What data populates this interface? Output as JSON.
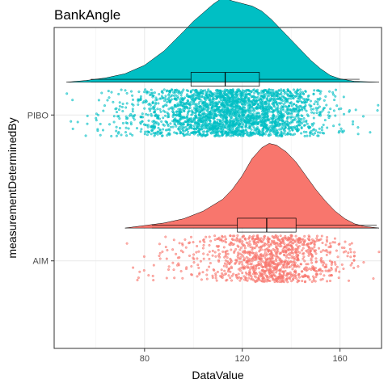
{
  "chart_data": {
    "type": "raincloud",
    "title": "BankAngle",
    "xlabel": "DataValue",
    "ylabel": "measurementDeterminedBy",
    "xlim": [
      43,
      177
    ],
    "x_ticks": [
      80,
      120,
      160
    ],
    "grid": true,
    "legend": "none",
    "categories": [
      "AIM",
      "PIBO"
    ],
    "series": [
      {
        "name": "AIM",
        "color": "#F8766D",
        "n_points": 1100,
        "min": 72,
        "max": 176,
        "whisker_low": 83,
        "q1": 118,
        "median": 130,
        "q3": 142,
        "whisker_high": 175,
        "mode": 131,
        "density": {
          "x": [
            72,
            80,
            88,
            96,
            104,
            112,
            116,
            120,
            124,
            128,
            131,
            134,
            138,
            142,
            146,
            150,
            154,
            158,
            162,
            166,
            170,
            176
          ],
          "y": [
            0.0,
            0.03,
            0.06,
            0.11,
            0.2,
            0.34,
            0.46,
            0.62,
            0.82,
            0.95,
            1.0,
            0.98,
            0.9,
            0.78,
            0.62,
            0.46,
            0.32,
            0.2,
            0.11,
            0.05,
            0.02,
            0.0
          ]
        }
      },
      {
        "name": "PIBO",
        "color": "#00BFC4",
        "n_points": 2600,
        "min": 48,
        "max": 176,
        "whisker_low": 58,
        "q1": 99,
        "median": 113,
        "q3": 127,
        "whisker_high": 168,
        "mode": 112,
        "density": {
          "x": [
            48,
            56,
            64,
            72,
            80,
            88,
            96,
            100,
            104,
            108,
            112,
            116,
            120,
            124,
            128,
            132,
            136,
            140,
            144,
            148,
            152,
            156,
            160,
            166,
            176
          ],
          "y": [
            0.0,
            0.02,
            0.05,
            0.1,
            0.2,
            0.37,
            0.6,
            0.72,
            0.82,
            0.92,
            1.0,
            0.96,
            0.93,
            0.9,
            0.84,
            0.74,
            0.62,
            0.5,
            0.38,
            0.26,
            0.16,
            0.08,
            0.04,
            0.01,
            0.0
          ]
        }
      }
    ]
  }
}
